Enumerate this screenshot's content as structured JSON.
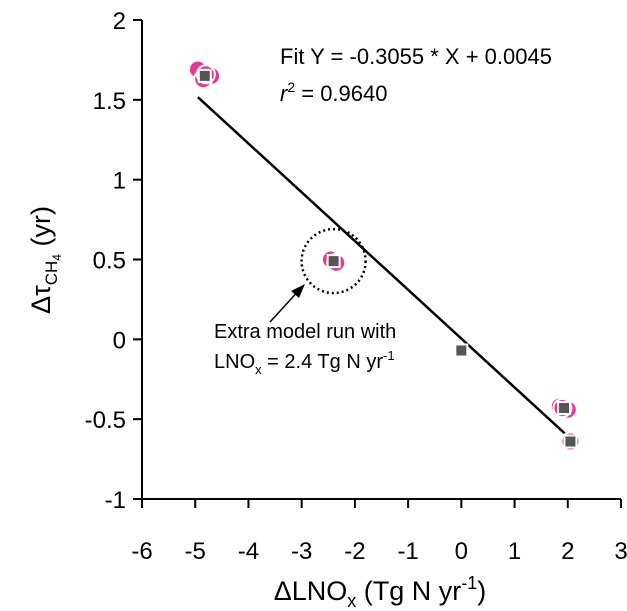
{
  "chart_data": {
    "type": "scatter",
    "xlabel_parts": {
      "delta": "Δ",
      "main": "LNO",
      "sub": "x",
      "rest": " (Tg N yr",
      "sup": "-1",
      "close": ")"
    },
    "ylabel_parts": {
      "delta": "Δ",
      "tau": "τ",
      "sub1": "CH",
      "sub2": "4",
      "rest": " (yr)"
    },
    "xlim": [
      -6,
      3
    ],
    "ylim": [
      -1,
      2
    ],
    "xticks": [
      -6,
      -5,
      -4,
      -3,
      -2,
      -1,
      0,
      1,
      2,
      3
    ],
    "yticks": [
      -1,
      -0.5,
      0,
      0.5,
      1,
      1.5,
      2
    ],
    "grid": false,
    "fit_text": "Fit Y = -0.3055 * X + 0.0045",
    "r2_parts": {
      "r": "r",
      "sup": "2",
      "rest": " = 0.9640"
    },
    "fit_line": {
      "slope": -0.3055,
      "intercept": 0.0045,
      "x_range": [
        -4.95,
        2.05
      ]
    },
    "series": [
      {
        "marker": "pink-circle",
        "color": "#e8378f",
        "x": [
          -4.95,
          -4.7,
          -4.85,
          -4.8,
          -2.45,
          -2.35,
          1.85,
          2.0,
          1.9,
          2.05
        ],
        "y": [
          1.69,
          1.65,
          1.63,
          1.66,
          0.5,
          0.48,
          -0.42,
          -0.44,
          -0.43,
          -0.64
        ]
      },
      {
        "marker": "gray-square",
        "color": "#555555",
        "x": [
          -4.82,
          -2.4,
          0.0,
          1.93,
          2.05
        ],
        "y": [
          1.65,
          0.49,
          -0.07,
          -0.43,
          -0.64
        ]
      }
    ],
    "annotation": {
      "line1": "Extra model run with",
      "line2_parts": {
        "pre": "LNO",
        "sub": "x",
        "mid": " = 2.4 Tg N yr",
        "sup": "-1"
      },
      "circle_center": [
        -2.4,
        0.49
      ]
    }
  }
}
